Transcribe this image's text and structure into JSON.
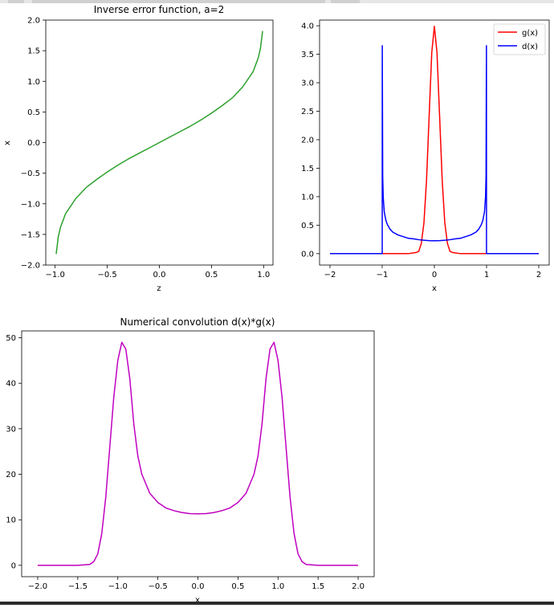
{
  "colors": {
    "green": "#2ca02c",
    "red": "#ff0000",
    "blue": "#0000ff",
    "magenta": "#c000c0"
  },
  "chart_data": [
    {
      "id": "inverse-erf",
      "type": "line",
      "title": "Inverse error function, a=2",
      "xlabel": "z",
      "ylabel": "x",
      "xlim": [
        -1.09,
        1.09
      ],
      "ylim": [
        -2.0,
        2.0
      ],
      "xticks": [
        -1.0,
        -0.5,
        0.0,
        0.5,
        1.0
      ],
      "xticklabels": [
        "−1.0",
        "−0.5",
        "0.0",
        "0.5",
        "1.0"
      ],
      "yticks": [
        -2.0,
        -1.5,
        -1.0,
        -0.5,
        0.0,
        0.5,
        1.0,
        1.5,
        2.0
      ],
      "yticklabels": [
        "−2.0",
        "−1.5",
        "−1.0",
        "−0.5",
        "0.0",
        "0.5",
        "1.0",
        "1.5",
        "2.0"
      ],
      "grid": false,
      "series": [
        {
          "color": "#2ca02c",
          "x": [
            -0.99,
            -0.97,
            -0.95,
            -0.9,
            -0.8,
            -0.7,
            -0.6,
            -0.5,
            -0.4,
            -0.3,
            -0.2,
            -0.1,
            0.0,
            0.1,
            0.2,
            0.3,
            0.4,
            0.5,
            0.6,
            0.7,
            0.8,
            0.9,
            0.95,
            0.97,
            0.99
          ],
          "y": [
            -1.82,
            -1.54,
            -1.39,
            -1.16,
            -0.91,
            -0.73,
            -0.6,
            -0.48,
            -0.37,
            -0.27,
            -0.18,
            -0.09,
            0.0,
            0.09,
            0.18,
            0.27,
            0.37,
            0.48,
            0.6,
            0.73,
            0.91,
            1.16,
            1.39,
            1.54,
            1.82
          ]
        }
      ]
    },
    {
      "id": "g-and-d",
      "type": "line",
      "title": "",
      "xlabel": "x",
      "ylabel": "",
      "xlim": [
        -2.2,
        2.2
      ],
      "ylim": [
        -0.2,
        4.1
      ],
      "xticks": [
        -2,
        -1,
        0,
        1,
        2
      ],
      "xticklabels": [
        "−2",
        "−1",
        "0",
        "1",
        "2"
      ],
      "yticks": [
        0.0,
        0.5,
        1.0,
        1.5,
        2.0,
        2.5,
        3.0,
        3.5,
        4.0
      ],
      "yticklabels": [
        "0.0",
        "0.5",
        "1.0",
        "1.5",
        "2.0",
        "2.5",
        "3.0",
        "3.5",
        "4.0"
      ],
      "legend_position": "top-right",
      "grid": false,
      "series": [
        {
          "name": "g(x)",
          "color": "#ff0000",
          "x": [
            -2.0,
            -0.5,
            -0.35,
            -0.3,
            -0.25,
            -0.2,
            -0.15,
            -0.1,
            -0.05,
            0.0,
            0.05,
            0.1,
            0.15,
            0.2,
            0.25,
            0.3,
            0.35,
            0.5,
            2.0
          ],
          "y": [
            0.0,
            0.0,
            0.02,
            0.04,
            0.18,
            0.54,
            1.29,
            2.42,
            3.53,
            3.99,
            3.53,
            2.42,
            1.29,
            0.54,
            0.18,
            0.04,
            0.02,
            0.0,
            0.0
          ]
        },
        {
          "name": "d(x)",
          "color": "#0000ff",
          "x": [
            -2.0,
            -0.999,
            -0.998,
            -0.99,
            -0.98,
            -0.96,
            -0.93,
            -0.9,
            -0.85,
            -0.8,
            -0.7,
            -0.6,
            -0.5,
            -0.4,
            -0.3,
            -0.2,
            -0.1,
            0.0,
            0.1,
            0.2,
            0.3,
            0.4,
            0.5,
            0.6,
            0.7,
            0.8,
            0.85,
            0.9,
            0.93,
            0.96,
            0.98,
            0.99,
            0.998,
            0.999,
            2.0
          ],
          "y": [
            0.0,
            0.0,
            3.65,
            1.36,
            0.99,
            0.73,
            0.59,
            0.51,
            0.43,
            0.38,
            0.33,
            0.3,
            0.27,
            0.26,
            0.245,
            0.235,
            0.229,
            0.227,
            0.229,
            0.235,
            0.245,
            0.26,
            0.27,
            0.3,
            0.33,
            0.38,
            0.43,
            0.51,
            0.59,
            0.73,
            0.99,
            1.36,
            3.65,
            0.0,
            0.0
          ]
        }
      ]
    },
    {
      "id": "convolution",
      "type": "line",
      "title": "Numerical convolution d(x)*g(x)",
      "xlabel": "x",
      "ylabel": "",
      "xlim": [
        -2.2,
        2.2
      ],
      "ylim": [
        -2.5,
        51.5
      ],
      "xticks": [
        -2.0,
        -1.5,
        -1.0,
        -0.5,
        0.0,
        0.5,
        1.0,
        1.5,
        2.0
      ],
      "xticklabels": [
        "−2.0",
        "−1.5",
        "−1.0",
        "−0.5",
        "0.0",
        "0.5",
        "1.0",
        "1.5",
        "2.0"
      ],
      "yticks": [
        0,
        10,
        20,
        30,
        40,
        50
      ],
      "yticklabels": [
        "0",
        "10",
        "20",
        "30",
        "40",
        "50"
      ],
      "grid": false,
      "series": [
        {
          "color": "#c000c0",
          "x": [
            -2.0,
            -1.5,
            -1.35,
            -1.3,
            -1.25,
            -1.2,
            -1.15,
            -1.1,
            -1.05,
            -1.0,
            -0.95,
            -0.9,
            -0.85,
            -0.8,
            -0.75,
            -0.7,
            -0.6,
            -0.5,
            -0.4,
            -0.3,
            -0.2,
            -0.1,
            0.0,
            0.1,
            0.2,
            0.3,
            0.4,
            0.5,
            0.6,
            0.7,
            0.75,
            0.8,
            0.85,
            0.9,
            0.95,
            1.0,
            1.05,
            1.1,
            1.15,
            1.2,
            1.25,
            1.3,
            1.35,
            1.5,
            2.0
          ],
          "y": [
            0.0,
            0.0,
            0.2,
            0.8,
            2.5,
            7.0,
            15.0,
            26.0,
            37.0,
            45.0,
            49.0,
            47.5,
            41.0,
            31.0,
            24.0,
            20.0,
            15.8,
            13.8,
            12.6,
            12.0,
            11.6,
            11.35,
            11.3,
            11.35,
            11.6,
            12.0,
            12.6,
            13.8,
            15.8,
            20.0,
            24.0,
            31.0,
            41.0,
            47.5,
            49.0,
            45.0,
            37.0,
            26.0,
            15.0,
            7.0,
            2.5,
            0.8,
            0.2,
            0.0,
            0.0
          ]
        }
      ]
    }
  ]
}
